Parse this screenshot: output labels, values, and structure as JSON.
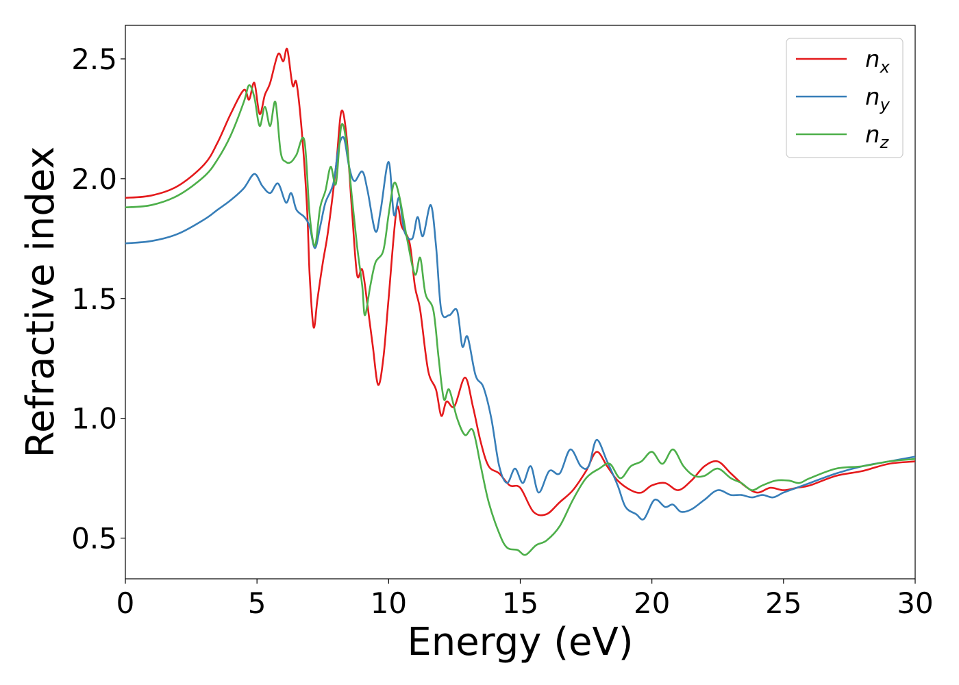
{
  "chart_data": {
    "type": "line",
    "xlabel": "Energy (eV)",
    "ylabel": "Refractive index",
    "xlim": [
      0,
      30
    ],
    "ylim": [
      0.33,
      2.64
    ],
    "xticks": [
      0,
      5,
      10,
      15,
      20,
      25,
      30
    ],
    "xtick_labels": [
      "0",
      "5",
      "10",
      "15",
      "20",
      "25",
      "30"
    ],
    "yticks": [
      0.5,
      1.0,
      1.5,
      2.0,
      2.5
    ],
    "ytick_labels": [
      "0.5",
      "1.0",
      "1.5",
      "2.0",
      "2.5"
    ],
    "grid": false,
    "legend_position": "top-right",
    "series": [
      {
        "base": "n",
        "sub": "x",
        "color": "#e41a1c",
        "points": [
          [
            0,
            1.92
          ],
          [
            1,
            1.93
          ],
          [
            2,
            1.97
          ],
          [
            3,
            2.06
          ],
          [
            3.5,
            2.15
          ],
          [
            4,
            2.27
          ],
          [
            4.5,
            2.37
          ],
          [
            4.7,
            2.33
          ],
          [
            4.9,
            2.4
          ],
          [
            5.1,
            2.27
          ],
          [
            5.3,
            2.35
          ],
          [
            5.5,
            2.4
          ],
          [
            5.8,
            2.52
          ],
          [
            6.0,
            2.49
          ],
          [
            6.15,
            2.54
          ],
          [
            6.35,
            2.39
          ],
          [
            6.5,
            2.4
          ],
          [
            6.7,
            2.2
          ],
          [
            6.9,
            1.88
          ],
          [
            7.0,
            1.6
          ],
          [
            7.15,
            1.38
          ],
          [
            7.3,
            1.5
          ],
          [
            7.5,
            1.65
          ],
          [
            7.7,
            1.78
          ],
          [
            8.0,
            2.05
          ],
          [
            8.2,
            2.28
          ],
          [
            8.4,
            2.18
          ],
          [
            8.6,
            1.88
          ],
          [
            8.8,
            1.6
          ],
          [
            9.0,
            1.62
          ],
          [
            9.2,
            1.47
          ],
          [
            9.4,
            1.3
          ],
          [
            9.6,
            1.14
          ],
          [
            9.8,
            1.25
          ],
          [
            10.0,
            1.5
          ],
          [
            10.3,
            1.87
          ],
          [
            10.5,
            1.8
          ],
          [
            10.8,
            1.73
          ],
          [
            11.0,
            1.55
          ],
          [
            11.2,
            1.45
          ],
          [
            11.5,
            1.2
          ],
          [
            11.8,
            1.12
          ],
          [
            12.0,
            1.01
          ],
          [
            12.2,
            1.07
          ],
          [
            12.5,
            1.05
          ],
          [
            12.9,
            1.17
          ],
          [
            13.2,
            1.05
          ],
          [
            13.5,
            0.9
          ],
          [
            13.8,
            0.8
          ],
          [
            14.2,
            0.77
          ],
          [
            14.6,
            0.72
          ],
          [
            15.0,
            0.71
          ],
          [
            15.5,
            0.61
          ],
          [
            16.0,
            0.6
          ],
          [
            16.5,
            0.65
          ],
          [
            17.0,
            0.7
          ],
          [
            17.5,
            0.78
          ],
          [
            17.9,
            0.86
          ],
          [
            18.3,
            0.8
          ],
          [
            18.7,
            0.74
          ],
          [
            19.2,
            0.7
          ],
          [
            19.6,
            0.69
          ],
          [
            20.0,
            0.72
          ],
          [
            20.5,
            0.73
          ],
          [
            21.0,
            0.7
          ],
          [
            21.5,
            0.74
          ],
          [
            22.0,
            0.8
          ],
          [
            22.5,
            0.82
          ],
          [
            23.0,
            0.77
          ],
          [
            23.5,
            0.72
          ],
          [
            24.0,
            0.69
          ],
          [
            24.5,
            0.71
          ],
          [
            25.0,
            0.7
          ],
          [
            25.5,
            0.71
          ],
          [
            26.0,
            0.72
          ],
          [
            27.0,
            0.76
          ],
          [
            28.0,
            0.78
          ],
          [
            29.0,
            0.81
          ],
          [
            30.0,
            0.82
          ]
        ]
      },
      {
        "base": "n",
        "sub": "y",
        "color": "#377eb8",
        "points": [
          [
            0,
            1.73
          ],
          [
            1,
            1.74
          ],
          [
            2,
            1.77
          ],
          [
            3,
            1.83
          ],
          [
            3.5,
            1.87
          ],
          [
            4,
            1.91
          ],
          [
            4.5,
            1.96
          ],
          [
            4.9,
            2.02
          ],
          [
            5.2,
            1.97
          ],
          [
            5.5,
            1.94
          ],
          [
            5.8,
            1.98
          ],
          [
            6.1,
            1.9
          ],
          [
            6.3,
            1.94
          ],
          [
            6.5,
            1.87
          ],
          [
            6.8,
            1.84
          ],
          [
            7.0,
            1.8
          ],
          [
            7.2,
            1.71
          ],
          [
            7.4,
            1.8
          ],
          [
            7.6,
            1.9
          ],
          [
            7.9,
            1.98
          ],
          [
            8.1,
            2.13
          ],
          [
            8.3,
            2.17
          ],
          [
            8.5,
            2.05
          ],
          [
            8.7,
            1.99
          ],
          [
            9.0,
            2.03
          ],
          [
            9.2,
            1.95
          ],
          [
            9.5,
            1.78
          ],
          [
            9.7,
            1.87
          ],
          [
            10.0,
            2.07
          ],
          [
            10.2,
            1.85
          ],
          [
            10.4,
            1.92
          ],
          [
            10.6,
            1.78
          ],
          [
            10.9,
            1.75
          ],
          [
            11.1,
            1.84
          ],
          [
            11.3,
            1.76
          ],
          [
            11.6,
            1.89
          ],
          [
            11.8,
            1.72
          ],
          [
            12.0,
            1.45
          ],
          [
            12.3,
            1.43
          ],
          [
            12.6,
            1.45
          ],
          [
            12.8,
            1.3
          ],
          [
            13.0,
            1.34
          ],
          [
            13.3,
            1.18
          ],
          [
            13.6,
            1.13
          ],
          [
            13.9,
            1.0
          ],
          [
            14.2,
            0.8
          ],
          [
            14.5,
            0.73
          ],
          [
            14.8,
            0.79
          ],
          [
            15.1,
            0.73
          ],
          [
            15.4,
            0.8
          ],
          [
            15.7,
            0.69
          ],
          [
            16.1,
            0.78
          ],
          [
            16.5,
            0.77
          ],
          [
            16.9,
            0.87
          ],
          [
            17.3,
            0.8
          ],
          [
            17.6,
            0.8
          ],
          [
            17.9,
            0.91
          ],
          [
            18.3,
            0.82
          ],
          [
            18.7,
            0.72
          ],
          [
            19.0,
            0.63
          ],
          [
            19.4,
            0.6
          ],
          [
            19.7,
            0.58
          ],
          [
            20.1,
            0.66
          ],
          [
            20.5,
            0.63
          ],
          [
            20.8,
            0.64
          ],
          [
            21.1,
            0.61
          ],
          [
            21.5,
            0.62
          ],
          [
            22.0,
            0.66
          ],
          [
            22.5,
            0.7
          ],
          [
            23.0,
            0.68
          ],
          [
            23.4,
            0.68
          ],
          [
            23.8,
            0.67
          ],
          [
            24.2,
            0.68
          ],
          [
            24.6,
            0.67
          ],
          [
            25.0,
            0.69
          ],
          [
            25.5,
            0.71
          ],
          [
            26.0,
            0.73
          ],
          [
            27.0,
            0.77
          ],
          [
            28.0,
            0.8
          ],
          [
            29.0,
            0.82
          ],
          [
            30.0,
            0.84
          ]
        ]
      },
      {
        "base": "n",
        "sub": "z",
        "color": "#4daf4a",
        "points": [
          [
            0,
            1.88
          ],
          [
            1,
            1.89
          ],
          [
            2,
            1.93
          ],
          [
            3,
            2.01
          ],
          [
            3.5,
            2.08
          ],
          [
            4,
            2.18
          ],
          [
            4.5,
            2.32
          ],
          [
            4.7,
            2.39
          ],
          [
            4.9,
            2.34
          ],
          [
            5.1,
            2.22
          ],
          [
            5.3,
            2.3
          ],
          [
            5.5,
            2.22
          ],
          [
            5.7,
            2.32
          ],
          [
            5.9,
            2.11
          ],
          [
            6.1,
            2.07
          ],
          [
            6.3,
            2.07
          ],
          [
            6.5,
            2.1
          ],
          [
            6.8,
            2.16
          ],
          [
            7.0,
            1.85
          ],
          [
            7.2,
            1.72
          ],
          [
            7.4,
            1.88
          ],
          [
            7.6,
            1.95
          ],
          [
            7.8,
            2.05
          ],
          [
            8.0,
            1.98
          ],
          [
            8.2,
            2.22
          ],
          [
            8.4,
            2.15
          ],
          [
            8.6,
            1.93
          ],
          [
            8.8,
            1.72
          ],
          [
            9.0,
            1.55
          ],
          [
            9.1,
            1.43
          ],
          [
            9.3,
            1.55
          ],
          [
            9.5,
            1.65
          ],
          [
            9.8,
            1.7
          ],
          [
            10.0,
            1.85
          ],
          [
            10.2,
            1.98
          ],
          [
            10.4,
            1.93
          ],
          [
            10.7,
            1.75
          ],
          [
            11.0,
            1.6
          ],
          [
            11.2,
            1.67
          ],
          [
            11.4,
            1.52
          ],
          [
            11.7,
            1.45
          ],
          [
            11.9,
            1.25
          ],
          [
            12.1,
            1.08
          ],
          [
            12.3,
            1.12
          ],
          [
            12.6,
            1.0
          ],
          [
            12.9,
            0.93
          ],
          [
            13.2,
            0.95
          ],
          [
            13.5,
            0.8
          ],
          [
            13.8,
            0.65
          ],
          [
            14.2,
            0.52
          ],
          [
            14.5,
            0.46
          ],
          [
            14.9,
            0.45
          ],
          [
            15.2,
            0.43
          ],
          [
            15.6,
            0.47
          ],
          [
            16.0,
            0.49
          ],
          [
            16.5,
            0.55
          ],
          [
            17.0,
            0.66
          ],
          [
            17.5,
            0.75
          ],
          [
            18.0,
            0.79
          ],
          [
            18.4,
            0.81
          ],
          [
            18.8,
            0.75
          ],
          [
            19.2,
            0.8
          ],
          [
            19.6,
            0.82
          ],
          [
            20.0,
            0.86
          ],
          [
            20.4,
            0.81
          ],
          [
            20.8,
            0.87
          ],
          [
            21.2,
            0.8
          ],
          [
            21.6,
            0.76
          ],
          [
            22.0,
            0.76
          ],
          [
            22.5,
            0.79
          ],
          [
            23.0,
            0.75
          ],
          [
            23.4,
            0.73
          ],
          [
            23.8,
            0.7
          ],
          [
            24.2,
            0.72
          ],
          [
            24.7,
            0.74
          ],
          [
            25.2,
            0.74
          ],
          [
            25.6,
            0.73
          ],
          [
            26.0,
            0.75
          ],
          [
            27.0,
            0.79
          ],
          [
            28.0,
            0.8
          ],
          [
            29.0,
            0.82
          ],
          [
            30.0,
            0.83
          ]
        ]
      }
    ]
  }
}
